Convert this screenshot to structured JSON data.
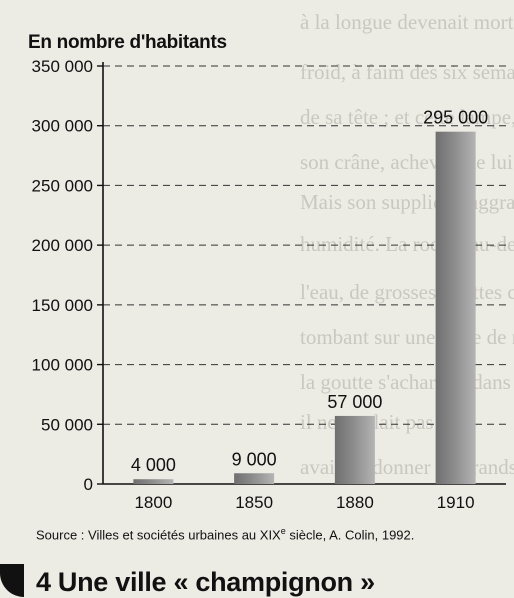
{
  "chart_data": {
    "type": "bar",
    "ylabel": "En nombre d'habitants",
    "categories": [
      "1800",
      "1850",
      "1880",
      "1910"
    ],
    "values": [
      4000,
      9000,
      57000,
      295000
    ],
    "value_labels": [
      "4 000",
      "9 000",
      "57 000",
      "295 000"
    ],
    "ylim": [
      0,
      350000
    ],
    "yticks": [
      0,
      50000,
      100000,
      150000,
      200000,
      250000,
      300000,
      350000
    ],
    "ytick_labels": [
      "0",
      "50 000",
      "100 000",
      "150 000",
      "200 000",
      "250 000",
      "300 000",
      "350 000"
    ],
    "grid": true,
    "bar_color": "#8b8b8b"
  },
  "source": {
    "prefix": "Source : Villes et sociétés urbaines au XIX",
    "sup": "e",
    "suffix": " siècle,  A. Colin, 1992."
  },
  "caption": "4 Une ville « champignon »"
}
